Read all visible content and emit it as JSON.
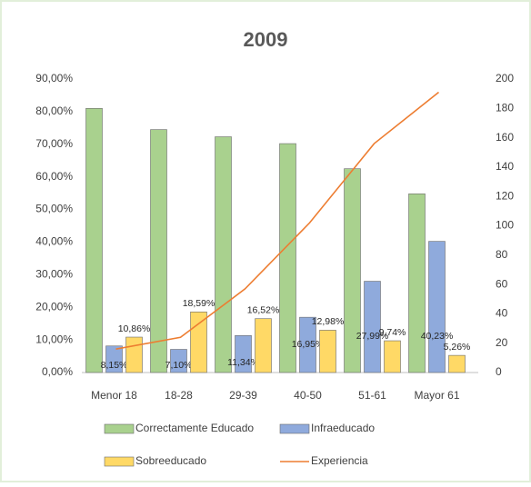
{
  "chart_data": {
    "type": "bar",
    "title": "2009",
    "categories": [
      "Menor 18",
      "18-28",
      "29-39",
      "40-50",
      "51-61",
      "Mayor 61"
    ],
    "series": [
      {
        "name": "Correctamente Educado",
        "color": "#a9d18e",
        "values": [
          81,
          74.5,
          72.3,
          70.2,
          62.5,
          54.8
        ]
      },
      {
        "name": "Infraeducado",
        "color": "#8faadc",
        "values": [
          8.15,
          7.1,
          11.34,
          16.95,
          27.99,
          40.23
        ],
        "value_labels": [
          "8,15%",
          "7,10%",
          "11,34%",
          "16,95%",
          "27,99%",
          "40,23%"
        ]
      },
      {
        "name": "Sobreeducado",
        "color": "#ffd966",
        "values": [
          10.86,
          18.59,
          16.52,
          12.98,
          9.74,
          5.26
        ],
        "value_labels": [
          "10,86%",
          "18,59%",
          "16,52%",
          "12,98%",
          "9,74%",
          "5,26%"
        ]
      },
      {
        "name": "Experiencia",
        "color": "#ed7d31",
        "type": "line",
        "axis": "y2",
        "values": [
          16,
          24,
          57,
          102,
          156,
          191
        ]
      }
    ],
    "ylim": [
      0,
      90
    ],
    "yticks": [
      {
        "value": 0,
        "label": "0,00%"
      },
      {
        "value": 10,
        "label": "10,00%"
      },
      {
        "value": 20,
        "label": "20,00%"
      },
      {
        "value": 30,
        "label": "30,00%"
      },
      {
        "value": 40,
        "label": "40,00%"
      },
      {
        "value": 50,
        "label": "50,00%"
      },
      {
        "value": 60,
        "label": "60,00%"
      },
      {
        "value": 70,
        "label": "70,00%"
      },
      {
        "value": 80,
        "label": "80,00%"
      },
      {
        "value": 90,
        "label": "90,00%"
      }
    ],
    "y2lim": [
      0,
      200
    ],
    "y2ticks": [
      0,
      20,
      40,
      60,
      80,
      100,
      120,
      140,
      160,
      180,
      200
    ],
    "grid": false,
    "legend": "bottom"
  }
}
